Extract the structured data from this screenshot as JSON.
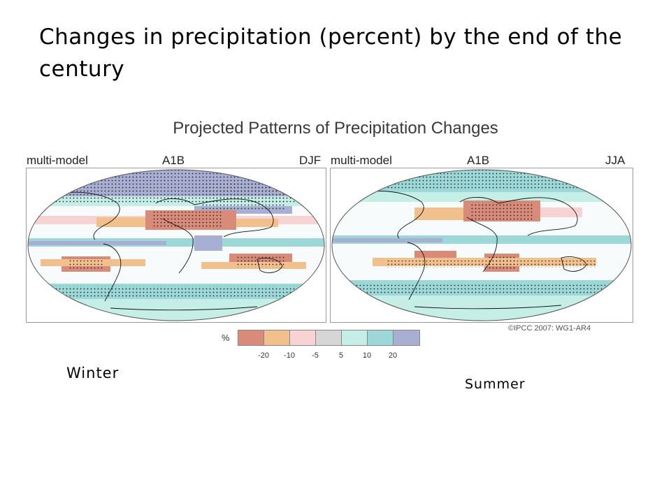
{
  "slide": {
    "title": "Changes in precipitation (percent) by the end of the century"
  },
  "figure": {
    "title": "Projected Patterns of Precipitation Changes",
    "credit": "©IPCC 2007: WG1-AR4",
    "panels": [
      {
        "model": "multi-model",
        "scenario": "A1B",
        "season": "DJF"
      },
      {
        "model": "multi-model",
        "scenario": "A1B",
        "season": "JJA"
      }
    ],
    "legend": {
      "unit": "%",
      "colors": [
        "#d98b7a",
        "#f2c08c",
        "#f7d3d3",
        "#d6d6d6",
        "#c5eee6",
        "#9dd8d9",
        "#a9aed3"
      ],
      "ticks": [
        "-20",
        "-10",
        "-5",
        "5",
        "10",
        "20"
      ]
    }
  },
  "captions": {
    "winter": "Winter",
    "summer": "Summer"
  }
}
